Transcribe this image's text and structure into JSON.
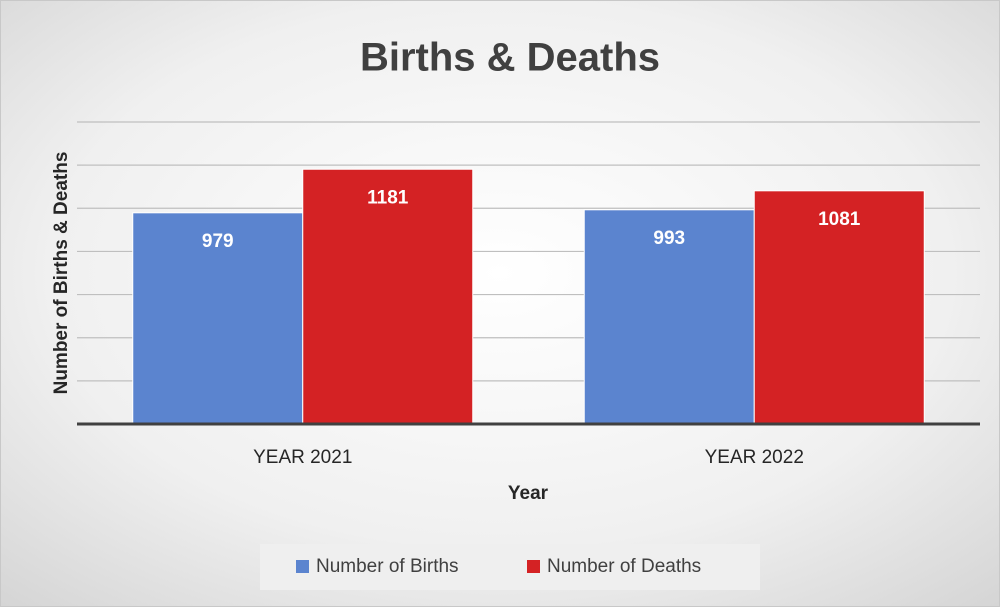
{
  "chart_data": {
    "type": "bar",
    "title": "Births & Deaths",
    "x_label": "Year",
    "y_label": "Number of Births & Deaths",
    "categories": [
      "YEAR 2021",
      "YEAR 2022"
    ],
    "series": [
      {
        "name": "Number of Births",
        "color": "#5b84cf",
        "values": [
          979,
          993
        ]
      },
      {
        "name": "Number of Deaths",
        "color": "#d42224",
        "values": [
          1181,
          1081
        ]
      }
    ],
    "ylim": [
      0,
      1400
    ],
    "yticks": [
      0,
      200,
      400,
      600,
      800,
      1000,
      1200,
      1400
    ],
    "grid": true,
    "legend": "bottom"
  }
}
